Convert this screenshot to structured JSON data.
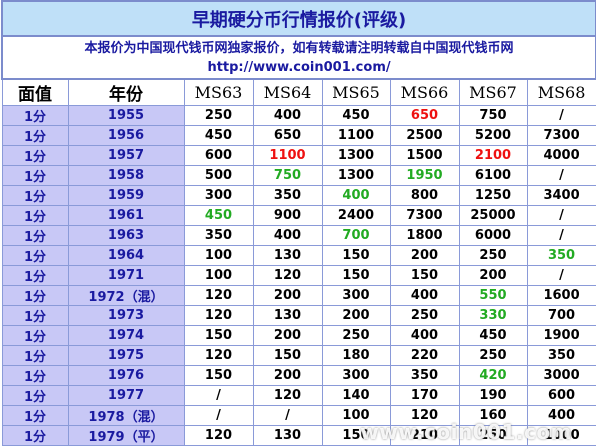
{
  "title": "早期硬分币行情报价(评级)",
  "notice_line1": "本报价为中国现代钱币网独家报价，如有转载请注明转载自中国现代钱币网",
  "notice_line2": "http://www.coin001.com/",
  "headers": [
    "面值",
    "年份",
    "MS63",
    "MS64",
    "MS65",
    "MS66",
    "MS67",
    "MS68"
  ],
  "colors": {
    "title_bg": "#bfe0f8",
    "label_bg": "#c8c8f6",
    "label_text": "#1a1aa0",
    "highlight_red": "#ee1111",
    "highlight_green": "#22aa22"
  },
  "rows": [
    {
      "denom": "1分",
      "year": "1955",
      "values": [
        "250",
        "400",
        "450",
        "650",
        "750",
        "/"
      ],
      "colors": [
        "",
        "",
        "",
        "red",
        "",
        ""
      ]
    },
    {
      "denom": "1分",
      "year": "1956",
      "values": [
        "450",
        "650",
        "1100",
        "2500",
        "5200",
        "7300"
      ],
      "colors": [
        "",
        "",
        "",
        "",
        "",
        ""
      ]
    },
    {
      "denom": "1分",
      "year": "1957",
      "values": [
        "600",
        "1100",
        "1300",
        "1500",
        "2100",
        "4000"
      ],
      "colors": [
        "",
        "red",
        "",
        "",
        "red",
        ""
      ]
    },
    {
      "denom": "1分",
      "year": "1958",
      "values": [
        "500",
        "750",
        "1300",
        "1950",
        "6100",
        "/"
      ],
      "colors": [
        "",
        "green",
        "",
        "green",
        "",
        ""
      ]
    },
    {
      "denom": "1分",
      "year": "1959",
      "values": [
        "300",
        "350",
        "400",
        "800",
        "1250",
        "3400"
      ],
      "colors": [
        "",
        "",
        "green",
        "",
        "",
        ""
      ]
    },
    {
      "denom": "1分",
      "year": "1961",
      "values": [
        "450",
        "900",
        "2400",
        "7300",
        "25000",
        "/"
      ],
      "colors": [
        "green",
        "",
        "",
        "",
        "",
        ""
      ]
    },
    {
      "denom": "1分",
      "year": "1963",
      "values": [
        "350",
        "400",
        "700",
        "1800",
        "6000",
        "/"
      ],
      "colors": [
        "",
        "",
        "green",
        "",
        "",
        ""
      ]
    },
    {
      "denom": "1分",
      "year": "1964",
      "values": [
        "100",
        "130",
        "150",
        "200",
        "250",
        "350"
      ],
      "colors": [
        "",
        "",
        "",
        "",
        "",
        "green"
      ]
    },
    {
      "denom": "1分",
      "year": "1971",
      "values": [
        "100",
        "120",
        "150",
        "150",
        "200",
        "/"
      ],
      "colors": [
        "",
        "",
        "",
        "",
        "",
        ""
      ]
    },
    {
      "denom": "1分",
      "year": "1972（混）",
      "values": [
        "120",
        "200",
        "300",
        "400",
        "550",
        "1600"
      ],
      "colors": [
        "",
        "",
        "",
        "",
        "green",
        ""
      ]
    },
    {
      "denom": "1分",
      "year": "1973",
      "values": [
        "120",
        "130",
        "200",
        "250",
        "330",
        "700"
      ],
      "colors": [
        "",
        "",
        "",
        "",
        "green",
        ""
      ]
    },
    {
      "denom": "1分",
      "year": "1974",
      "values": [
        "150",
        "200",
        "250",
        "400",
        "450",
        "1900"
      ],
      "colors": [
        "",
        "",
        "",
        "",
        "",
        ""
      ]
    },
    {
      "denom": "1分",
      "year": "1975",
      "values": [
        "120",
        "150",
        "180",
        "220",
        "250",
        "350"
      ],
      "colors": [
        "",
        "",
        "",
        "",
        "",
        ""
      ]
    },
    {
      "denom": "1分",
      "year": "1976",
      "values": [
        "150",
        "200",
        "300",
        "350",
        "420",
        "3000"
      ],
      "colors": [
        "",
        "",
        "",
        "",
        "green",
        ""
      ]
    },
    {
      "denom": "1分",
      "year": "1977",
      "values": [
        "/",
        "120",
        "140",
        "170",
        "190",
        "600"
      ],
      "colors": [
        "",
        "",
        "",
        "",
        "",
        ""
      ]
    },
    {
      "denom": "1分",
      "year": "1978（混）",
      "values": [
        "/",
        "/",
        "100",
        "120",
        "160",
        "400"
      ],
      "colors": [
        "",
        "",
        "",
        "",
        "",
        ""
      ]
    },
    {
      "denom": "1分",
      "year": "1979（平）",
      "values": [
        "120",
        "130",
        "150",
        "210",
        "250",
        "1000"
      ],
      "colors": [
        "",
        "",
        "",
        "",
        "",
        ""
      ]
    }
  ],
  "watermark": "www.coin001.com"
}
